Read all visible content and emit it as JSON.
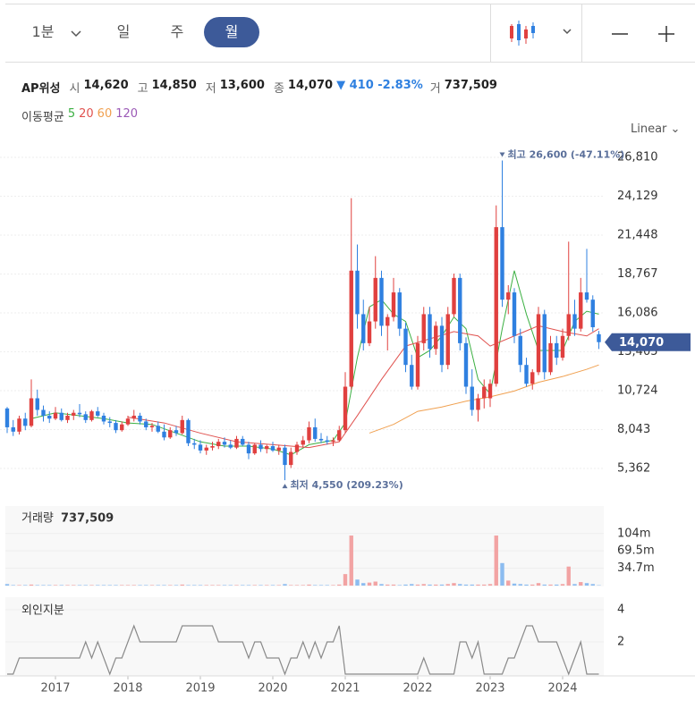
{
  "toolbar": {
    "tabs": [
      "1분",
      "일",
      "주",
      "월"
    ],
    "selected_index": 3
  },
  "stock": {
    "name": "AP위성",
    "fields": [
      {
        "label": "시",
        "value": "14,620"
      },
      {
        "label": "고",
        "value": "14,850"
      },
      {
        "label": "저",
        "value": "13,600"
      },
      {
        "label": "종",
        "value": "14,070"
      }
    ],
    "change": "▼ 410 -2.83%",
    "volume_label": "거",
    "volume": "737,509"
  },
  "ma_title": "이동평균",
  "chart_data": [
    {
      "type": "candlestick",
      "scale_label": "Linear",
      "up_color": "#e0403f",
      "down_color": "#2f80e0",
      "ylim": [
        3450,
        27800
      ],
      "yticks": [
        {
          "value": 26810,
          "label": "26,810"
        },
        {
          "value": 24129,
          "label": "24,129"
        },
        {
          "value": 21448,
          "label": "21,448"
        },
        {
          "value": 18767,
          "label": "18,767"
        },
        {
          "value": 16086,
          "label": "16,086"
        },
        {
          "value": 13405,
          "label": "13,405"
        },
        {
          "value": 10724,
          "label": "10,724"
        },
        {
          "value": 8043,
          "label": "8,043"
        },
        {
          "value": 5362,
          "label": "5,362"
        }
      ],
      "ohlc": [
        [
          9500,
          9600,
          7800,
          8200
        ],
        [
          8200,
          8700,
          7600,
          7900
        ],
        [
          7900,
          9000,
          7700,
          8800
        ],
        [
          8800,
          9200,
          8000,
          8300
        ],
        [
          8300,
          11500,
          8200,
          10200
        ],
        [
          10200,
          10800,
          9000,
          9400
        ],
        [
          9400,
          9700,
          8600,
          9000
        ],
        [
          9000,
          9300,
          8500,
          8800
        ],
        [
          8800,
          9600,
          8700,
          9200
        ],
        [
          9200,
          9500,
          8600,
          8700
        ],
        [
          8700,
          9200,
          8500,
          9000
        ],
        [
          9000,
          9400,
          8700,
          9200
        ],
        [
          9200,
          9800,
          8900,
          9100
        ],
        [
          9100,
          9300,
          8500,
          8700
        ],
        [
          8700,
          9400,
          8600,
          9300
        ],
        [
          9300,
          9600,
          8900,
          9000
        ],
        [
          9000,
          9200,
          8400,
          8600
        ],
        [
          8600,
          8900,
          8200,
          8500
        ],
        [
          8500,
          8700,
          7800,
          8000
        ],
        [
          8000,
          8600,
          7900,
          8400
        ],
        [
          8400,
          9000,
          8300,
          8800
        ],
        [
          8800,
          9400,
          8600,
          9000
        ],
        [
          9000,
          9200,
          8400,
          8600
        ],
        [
          8600,
          8800,
          8000,
          8200
        ],
        [
          8200,
          8500,
          7900,
          8300
        ],
        [
          8300,
          8600,
          7800,
          7900
        ],
        [
          7900,
          8400,
          7300,
          7500
        ],
        [
          7500,
          8200,
          7400,
          8000
        ],
        [
          8000,
          8300,
          7600,
          7800
        ],
        [
          7800,
          9000,
          7700,
          8700
        ],
        [
          8700,
          8800,
          6900,
          7100
        ],
        [
          7100,
          7400,
          6700,
          7000
        ],
        [
          7000,
          7300,
          6400,
          6600
        ],
        [
          6600,
          7000,
          6300,
          6800
        ],
        [
          6800,
          7200,
          6600,
          6900
        ],
        [
          6900,
          7400,
          6700,
          7200
        ],
        [
          7200,
          7500,
          6800,
          7000
        ],
        [
          7000,
          7300,
          6700,
          6800
        ],
        [
          6800,
          7600,
          6700,
          7400
        ],
        [
          7400,
          7600,
          6900,
          7000
        ],
        [
          7000,
          7200,
          6000,
          6400
        ],
        [
          6400,
          7100,
          6300,
          7000
        ],
        [
          7000,
          7300,
          6500,
          6700
        ],
        [
          6700,
          7000,
          6400,
          6900
        ],
        [
          6900,
          7200,
          6500,
          6600
        ],
        [
          6600,
          7000,
          6300,
          6800
        ],
        [
          6800,
          7000,
          4550,
          5600
        ],
        [
          5600,
          6800,
          5400,
          6500
        ],
        [
          6500,
          7200,
          6300,
          7000
        ],
        [
          7000,
          7600,
          6800,
          7300
        ],
        [
          7300,
          8600,
          7100,
          8200
        ],
        [
          8200,
          8800,
          7200,
          7400
        ],
        [
          7400,
          7800,
          7100,
          7300
        ],
        [
          7300,
          7600,
          7000,
          7200
        ],
        [
          7200,
          7500,
          6900,
          7300
        ],
        [
          7300,
          8300,
          7200,
          8000
        ],
        [
          8000,
          12000,
          7800,
          11000
        ],
        [
          11000,
          24000,
          10800,
          19000
        ],
        [
          19000,
          20800,
          15000,
          16000
        ],
        [
          16000,
          17000,
          13500,
          14000
        ],
        [
          14000,
          16500,
          13800,
          15500
        ],
        [
          15500,
          20000,
          15000,
          18500
        ],
        [
          18500,
          19000,
          14500,
          15200
        ],
        [
          15200,
          16000,
          13500,
          15800
        ],
        [
          15800,
          18500,
          15500,
          17500
        ],
        [
          17500,
          17800,
          14500,
          15000
        ],
        [
          15000,
          15400,
          12000,
          12500
        ],
        [
          12500,
          13200,
          10800,
          11000
        ],
        [
          11000,
          14500,
          10800,
          14000
        ],
        [
          14000,
          16500,
          13500,
          16000
        ],
        [
          16000,
          16500,
          13000,
          13600
        ],
        [
          13600,
          15500,
          13200,
          15200
        ],
        [
          15200,
          15800,
          12000,
          12500
        ],
        [
          12500,
          16500,
          12200,
          16000
        ],
        [
          16000,
          18800,
          15800,
          18500
        ],
        [
          18500,
          18800,
          13500,
          14000
        ],
        [
          14000,
          14400,
          10500,
          11000
        ],
        [
          11000,
          12200,
          9000,
          9400
        ],
        [
          9400,
          10500,
          8600,
          10200
        ],
        [
          10200,
          11500,
          9500,
          11000
        ],
        [
          10200,
          11500,
          9600,
          11200
        ],
        [
          11200,
          23500,
          11000,
          22000
        ],
        [
          22000,
          26600,
          16500,
          17000
        ],
        [
          17000,
          18000,
          16000,
          17500
        ],
        [
          17500,
          17800,
          14000,
          14500
        ],
        [
          14500,
          15000,
          12000,
          12500
        ],
        [
          12500,
          13000,
          11000,
          11200
        ],
        [
          11200,
          12200,
          10800,
          12000
        ],
        [
          12000,
          16500,
          11800,
          16000
        ],
        [
          16000,
          16300,
          11500,
          12000
        ],
        [
          12000,
          14500,
          11800,
          14000
        ],
        [
          14000,
          14500,
          12500,
          13000
        ],
        [
          13000,
          15000,
          12800,
          14500
        ],
        [
          14500,
          21000,
          14200,
          16000
        ],
        [
          16000,
          17000,
          14500,
          15000
        ],
        [
          15000,
          18500,
          14800,
          17500
        ],
        [
          17500,
          20500,
          16800,
          17000
        ],
        [
          17000,
          17300,
          14800,
          15100
        ],
        [
          14620,
          14850,
          13600,
          14070
        ]
      ],
      "series": [
        {
          "name": "5",
          "color": "#3cb043",
          "x": [
            4,
            8,
            12,
            16,
            20,
            24,
            28,
            32,
            36,
            40,
            44,
            47,
            50,
            54,
            56,
            58,
            60,
            62,
            64,
            66,
            68,
            70,
            72,
            74,
            76,
            78,
            80,
            82,
            84,
            86,
            88,
            90,
            92,
            94,
            96,
            98
          ],
          "values": [
            8800,
            9200,
            9000,
            8800,
            8500,
            8400,
            7800,
            7200,
            6900,
            6900,
            6700,
            6300,
            7000,
            7300,
            8500,
            13000,
            16500,
            17000,
            16000,
            15500,
            13000,
            13500,
            14500,
            15800,
            15000,
            11500,
            10500,
            15000,
            19000,
            16000,
            13500,
            13500,
            13500,
            15500,
            16200,
            16000
          ]
        },
        {
          "name": "20",
          "color": "#e0524f",
          "x": [
            20,
            26,
            32,
            38,
            44,
            50,
            55,
            58,
            62,
            66,
            70,
            74,
            78,
            80,
            84,
            88,
            92,
            96,
            98
          ],
          "values": [
            8900,
            8500,
            7800,
            7200,
            7000,
            6800,
            7200,
            9000,
            11500,
            13800,
            14300,
            14800,
            14500,
            13800,
            14500,
            15200,
            14800,
            14500,
            15000
          ]
        },
        {
          "name": "60",
          "color": "#f0a050",
          "x": [
            60,
            64,
            68,
            72,
            76,
            80,
            84,
            88,
            92,
            96,
            98
          ],
          "values": [
            7800,
            8400,
            9300,
            9600,
            10000,
            10300,
            10700,
            11300,
            11700,
            12200,
            12500
          ]
        },
        {
          "name": "120",
          "color": "#9b59b6",
          "x": [],
          "values": []
        }
      ],
      "annotations": [
        {
          "text": "최고 26,600 (-47.11%)",
          "x": 82,
          "value": 26600,
          "dir": "down"
        },
        {
          "text": "최저 4,550 (209.23%)",
          "x": 46,
          "value": 4550,
          "dir": "up"
        }
      ],
      "last": {
        "label": "14,070",
        "value": 14070
      }
    },
    {
      "type": "bar",
      "title": "거래량",
      "value_text": "737,509",
      "up_color": "#f2a3a3",
      "down_color": "#8cbcf0",
      "ylim": [
        0,
        159
      ],
      "yticks": [
        {
          "value": 104,
          "label": "104m"
        },
        {
          "value": 69.5,
          "label": "69.5m"
        },
        {
          "value": 34.7,
          "label": "34.7m"
        }
      ],
      "values": [
        3,
        1,
        1,
        1,
        2,
        1,
        1,
        1,
        1,
        1,
        1,
        1,
        1,
        1,
        1,
        1,
        1,
        1,
        1,
        1,
        1,
        1,
        1,
        1,
        1,
        1,
        1,
        1,
        1,
        2,
        1,
        1,
        1,
        1,
        1,
        1,
        1,
        1,
        1,
        1,
        1,
        1,
        1,
        1,
        1,
        1,
        3,
        1,
        1,
        1,
        2,
        1,
        1,
        1,
        1,
        2,
        23,
        100,
        12,
        5,
        6,
        8,
        3,
        2,
        2,
        1,
        2,
        3,
        2,
        3,
        2,
        2,
        2,
        3,
        5,
        3,
        2,
        2,
        2,
        2,
        3,
        100,
        45,
        10,
        4,
        3,
        2,
        2,
        5,
        2,
        2,
        2,
        3,
        38,
        3,
        7,
        5,
        3,
        0.74
      ]
    },
    {
      "type": "line",
      "title": "외인지분",
      "color": "#8a8a8a",
      "ylim": [
        0,
        4.8
      ],
      "yticks": [
        4,
        2
      ],
      "xticks": [
        {
          "value": 8,
          "label": "2017"
        },
        {
          "value": 20,
          "label": "2018"
        },
        {
          "value": 32,
          "label": "2019"
        },
        {
          "value": 44,
          "label": "2020"
        },
        {
          "value": 56,
          "label": "2021"
        },
        {
          "value": 68,
          "label": "2022"
        },
        {
          "value": 80,
          "label": "2023"
        },
        {
          "value": 92,
          "label": "2024"
        }
      ],
      "values": [
        0,
        0,
        1,
        1,
        1,
        1,
        1,
        1,
        1,
        1,
        1,
        1,
        1,
        2,
        1,
        2,
        1,
        0,
        1,
        1,
        2,
        3,
        2,
        2,
        2,
        2,
        2,
        2,
        2,
        3,
        3,
        3,
        3,
        3,
        3,
        2,
        2,
        2,
        2,
        2,
        1,
        2,
        2,
        1,
        1,
        1,
        0,
        1,
        1,
        2,
        1,
        2,
        1,
        2,
        2,
        3,
        0,
        0,
        0,
        0,
        0,
        0,
        0,
        0,
        0,
        0,
        0,
        0,
        0,
        1,
        0,
        0,
        0,
        0,
        0,
        2,
        2,
        1,
        2,
        0,
        0,
        0,
        0,
        1,
        1,
        2,
        3,
        3,
        2,
        2,
        2,
        2,
        1,
        0,
        1,
        2,
        0,
        0,
        0
      ]
    }
  ]
}
